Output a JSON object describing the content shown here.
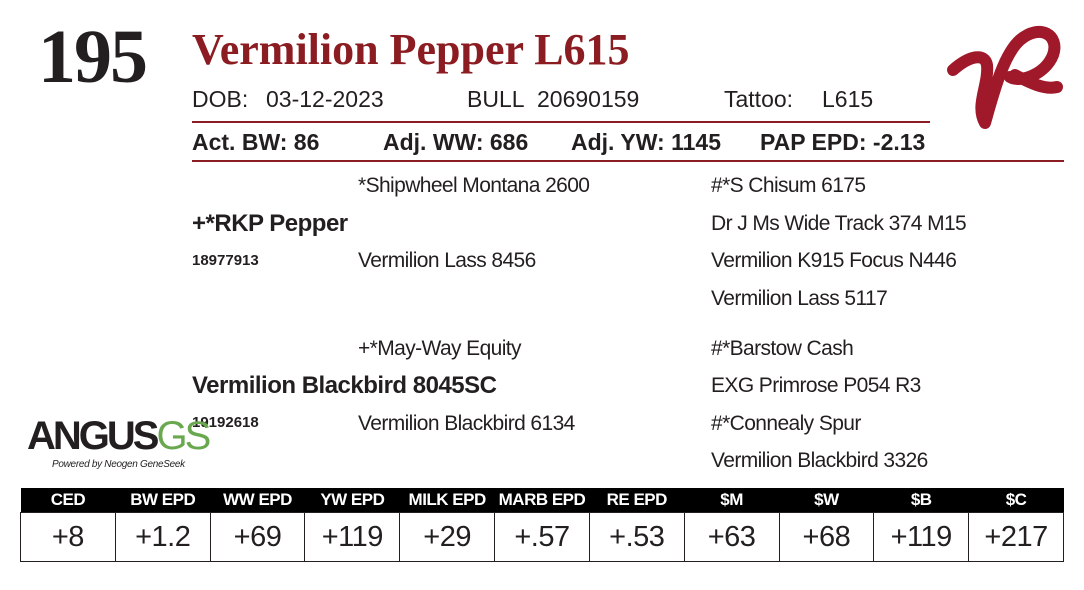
{
  "lot": "195",
  "name": "Vermilion Pepper L615",
  "info": {
    "dob_label": "DOB:",
    "dob": "03-12-2023",
    "sex": "BULL",
    "registration": "20690159",
    "tattoo_label": "Tattoo:",
    "tattoo": "L615"
  },
  "performance": [
    {
      "label": "Act. BW:",
      "value": "86"
    },
    {
      "label": "Adj. WW:",
      "value": "686"
    },
    {
      "label": "Adj. YW:",
      "value": "1145"
    },
    {
      "label": "PAP EPD:",
      "value": "-2.13"
    }
  ],
  "pedigree": {
    "sire": {
      "name": "+*RKP Pepper",
      "registration": "18977913",
      "sire": "*Shipwheel Montana 2600",
      "dam": "Vermilion Lass 8456",
      "grandparents": [
        "#*S Chisum 6175",
        "Dr J Ms Wide Track 374 M15",
        "Vermilion K915 Focus N446",
        "Vermilion Lass 5117"
      ]
    },
    "dam": {
      "name": "Vermilion Blackbird 8045SC",
      "registration": "19192618",
      "sire": "+*May-Way Equity",
      "dam": "Vermilion Blackbird 6134",
      "grandparents": [
        "#*Barstow Cash",
        "EXG Primrose P054 R3",
        "#*Connealy Spur",
        "Vermilion Blackbird 3326"
      ]
    }
  },
  "logo": {
    "word": "ANGUS",
    "suffix": "GS",
    "tagline": "Powered by Neogen GeneSeek"
  },
  "epd_table": {
    "headers": [
      "CED",
      "BW EPD",
      "WW EPD",
      "YW EPD",
      "MILK EPD",
      "MARB EPD",
      "RE EPD",
      "$M",
      "$W",
      "$B",
      "$C"
    ],
    "values": [
      "+8",
      "+1.2",
      "+69",
      "+119",
      "+29",
      "+.57",
      "+.53",
      "+63",
      "+68",
      "+119",
      "+217"
    ]
  }
}
